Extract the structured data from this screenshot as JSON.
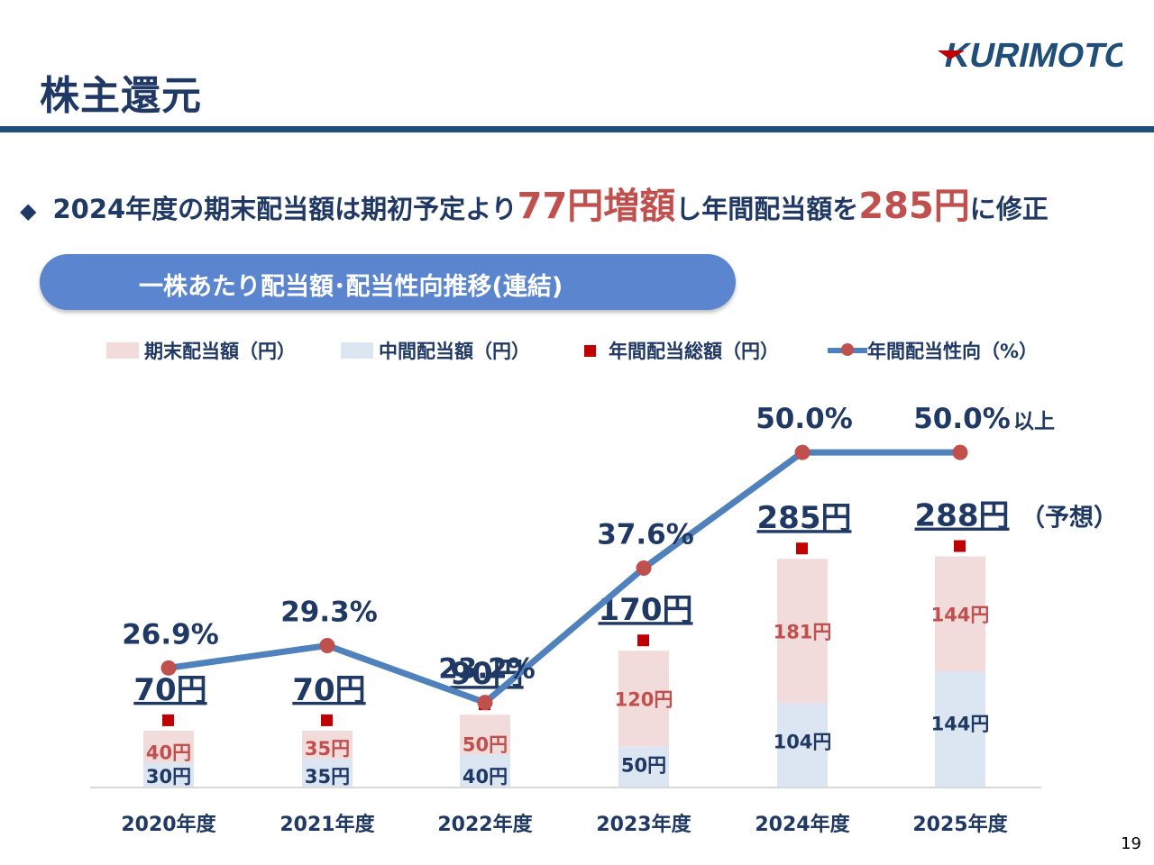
{
  "header": {
    "title": "株主還元",
    "logo_text": "KURIMOTO"
  },
  "headline": {
    "bullet": "◆",
    "part1": "2024年度の期末配当額は期初予定より",
    "hl1": "77円増額",
    "part2": "し年間配当額を",
    "hl2": "285円",
    "part3": "に修正"
  },
  "subtitle": "一株あたり配当額･配当性向推移(連結)",
  "legend": {
    "final": "期末配当額（円）",
    "interim": "中間配当額（円）",
    "total": "年間配当総額（円）",
    "ratio": "年間配当性向（%）"
  },
  "colors": {
    "final_bar": "#f2dcdb",
    "interim_bar": "#dce6f2",
    "total_marker": "#c00000",
    "ratio_line": "#4f81bd",
    "ratio_point": "#c0504d",
    "final_label": "#c0504d",
    "interim_label": "#1f3864"
  },
  "chart_data": {
    "type": "bar",
    "stacked": true,
    "categories": [
      "2020年度",
      "2021年度",
      "2022年度",
      "2023年度",
      "2024年度",
      "2025年度"
    ],
    "series": [
      {
        "name": "中間配当額（円）",
        "values": [
          30,
          35,
          40,
          50,
          104,
          144
        ],
        "labels": [
          "30円",
          "35円",
          "40円",
          "50円",
          "104円",
          "144円"
        ]
      },
      {
        "name": "期末配当額（円）",
        "values": [
          40,
          35,
          50,
          120,
          181,
          144
        ],
        "labels": [
          "40円",
          "35円",
          "50円",
          "120円",
          "181円",
          "144円"
        ]
      },
      {
        "name": "年間配当総額（円）",
        "values": [
          70,
          70,
          90,
          170,
          285,
          288
        ],
        "labels": [
          "70円",
          "70円",
          "90円",
          "170円",
          "285円",
          "288円"
        ]
      },
      {
        "name": "年間配当性向（%）",
        "type": "line",
        "values": [
          26.9,
          29.3,
          23.2,
          37.6,
          50.0,
          50.0
        ],
        "labels": [
          "26.9%",
          "29.3%",
          "23.2%",
          "37.6%",
          "50.0%",
          "50.0%"
        ]
      }
    ],
    "annotations": {
      "forecast": "（予想）",
      "ratio_suffix": "以上"
    },
    "ylim_left": [
      0,
      500
    ],
    "ylim_right": [
      0,
      60
    ]
  },
  "page_number": "19"
}
